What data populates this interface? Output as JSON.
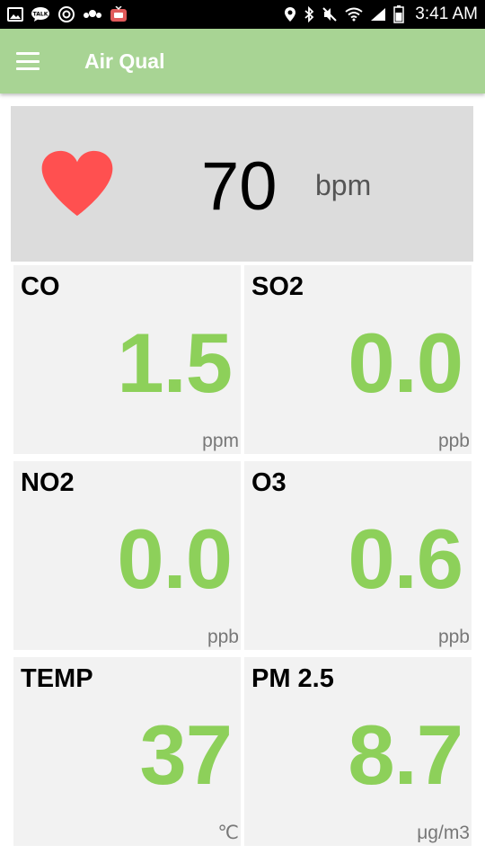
{
  "status_bar": {
    "time": "3:41 AM",
    "left_icons": [
      "image-icon",
      "talk-icon",
      "power-circle-icon",
      "cat-icon",
      "tv-icon"
    ],
    "right_icons": [
      "location-icon",
      "bluetooth-icon",
      "mute-icon",
      "wifi-icon",
      "signal-icon",
      "battery-icon"
    ]
  },
  "app_bar": {
    "title": "Air Qual",
    "color": "#a8d494"
  },
  "heart_rate": {
    "value": "70",
    "unit": "bpm",
    "heart_color": "#ff5050"
  },
  "tiles": [
    {
      "label": "CO",
      "value": "1.5",
      "unit": "ppm"
    },
    {
      "label": "SO2",
      "value": "0.0",
      "unit": "ppb"
    },
    {
      "label": "NO2",
      "value": "0.0",
      "unit": "ppb"
    },
    {
      "label": "O3",
      "value": "0.6",
      "unit": "ppb"
    },
    {
      "label": "TEMP",
      "value": "37",
      "unit": "℃"
    },
    {
      "label": "PM 2.5",
      "value": "8.7",
      "unit": "μg/m3"
    }
  ],
  "value_color": "#8dd05a"
}
